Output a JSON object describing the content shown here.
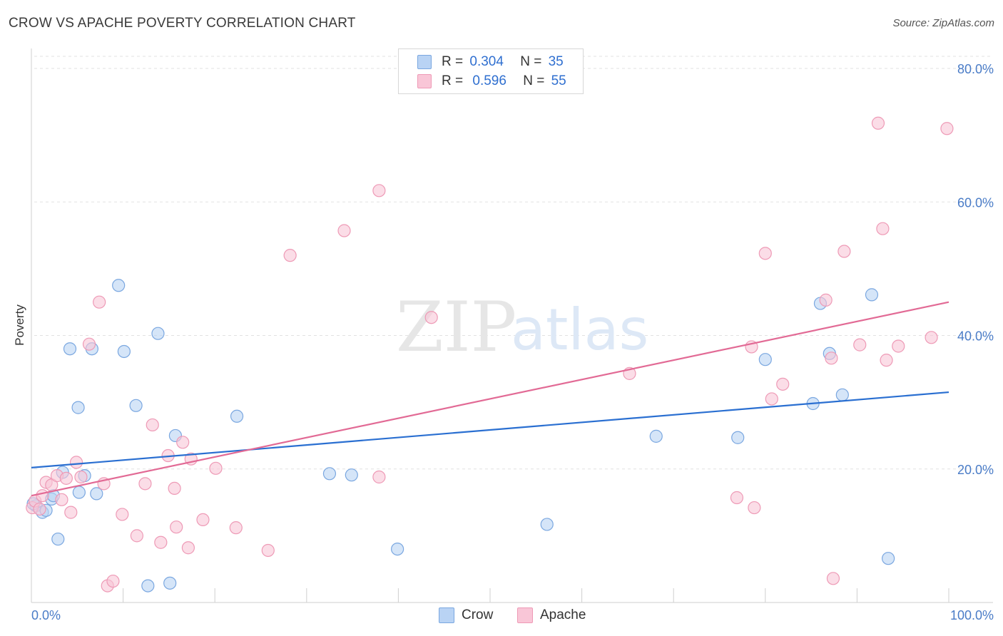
{
  "title": "CROW VS APACHE POVERTY CORRELATION CHART",
  "source": "Source: ZipAtlas.com",
  "watermark": {
    "zip": "ZIP",
    "atlas": "atlas"
  },
  "colors": {
    "crow_fill": "#b9d3f4",
    "crow_stroke": "#7aa7e0",
    "crow_line": "#2a6fd1",
    "apache_fill": "#f9c6d7",
    "apache_stroke": "#ee9ab6",
    "apache_line": "#e26a95",
    "accent_text": "#2f6fd0"
  },
  "legend": {
    "crow": {
      "r_label": "R =",
      "r_value": "0.304",
      "n_label": "N =",
      "n_value": "35"
    },
    "apache": {
      "r_label": "R =",
      "r_value": "0.596",
      "n_label": "N =",
      "n_value": "55"
    }
  },
  "bottom_legend": {
    "crow": "Crow",
    "apache": "Apache"
  },
  "chart_data": {
    "type": "scatter",
    "title": "CROW VS APACHE POVERTY CORRELATION CHART",
    "xlabel": "",
    "ylabel": "Poverty",
    "xlim": [
      0,
      100
    ],
    "ylim": [
      0,
      81
    ],
    "x_tick_labels": [
      "0.0%",
      "100.0%"
    ],
    "y_ticks": [
      20,
      40,
      60,
      80
    ],
    "y_tick_labels": [
      "20.0%",
      "40.0%",
      "60.0%",
      "80.0%"
    ],
    "grid": true,
    "legend_position": "top-center",
    "series": [
      {
        "name": "Crow",
        "r": 0.304,
        "n": 35,
        "trend": {
          "x": [
            0,
            100
          ],
          "y": [
            20.2,
            31.5
          ]
        },
        "points": [
          [
            0.5,
            14.5
          ],
          [
            1.2,
            13.5
          ],
          [
            1.6,
            13.8
          ],
          [
            2.2,
            15.5
          ],
          [
            2.4,
            16.0
          ],
          [
            2.9,
            9.5
          ],
          [
            3.4,
            19.5
          ],
          [
            4.2,
            38.0
          ],
          [
            5.1,
            29.2
          ],
          [
            5.2,
            16.5
          ],
          [
            5.8,
            19.0
          ],
          [
            6.6,
            38.0
          ],
          [
            7.1,
            16.3
          ],
          [
            9.5,
            47.5
          ],
          [
            10.1,
            37.6
          ],
          [
            11.4,
            29.5
          ],
          [
            12.7,
            2.5
          ],
          [
            13.8,
            40.3
          ],
          [
            15.1,
            2.9
          ],
          [
            15.7,
            25.0
          ],
          [
            22.4,
            27.9
          ],
          [
            32.5,
            19.3
          ],
          [
            34.9,
            19.1
          ],
          [
            39.9,
            8.0
          ],
          [
            56.2,
            11.7
          ],
          [
            68.1,
            24.9
          ],
          [
            77.0,
            24.7
          ],
          [
            80.0,
            36.4
          ],
          [
            85.2,
            29.8
          ],
          [
            86.0,
            44.8
          ],
          [
            87.0,
            37.3
          ],
          [
            88.4,
            31.1
          ],
          [
            91.6,
            46.1
          ],
          [
            93.4,
            6.6
          ],
          [
            0.2,
            14.8
          ]
        ]
      },
      {
        "name": "Apache",
        "r": 0.596,
        "n": 55,
        "trend": {
          "x": [
            0,
            100
          ],
          "y": [
            16.0,
            45.0
          ]
        },
        "points": [
          [
            0.1,
            14.2
          ],
          [
            0.4,
            15.2
          ],
          [
            0.9,
            14.0
          ],
          [
            1.2,
            16.0
          ],
          [
            1.6,
            18.0
          ],
          [
            2.2,
            17.6
          ],
          [
            2.8,
            19.0
          ],
          [
            3.3,
            15.4
          ],
          [
            3.8,
            18.6
          ],
          [
            4.3,
            13.5
          ],
          [
            4.9,
            21.0
          ],
          [
            5.4,
            18.8
          ],
          [
            6.3,
            38.7
          ],
          [
            7.4,
            45.0
          ],
          [
            7.9,
            17.8
          ],
          [
            8.3,
            2.5
          ],
          [
            8.9,
            3.2
          ],
          [
            9.9,
            13.2
          ],
          [
            11.5,
            10.0
          ],
          [
            12.4,
            17.8
          ],
          [
            13.2,
            26.6
          ],
          [
            14.1,
            9.0
          ],
          [
            14.9,
            22.0
          ],
          [
            15.6,
            17.1
          ],
          [
            15.8,
            11.3
          ],
          [
            16.5,
            24.0
          ],
          [
            17.1,
            8.2
          ],
          [
            17.4,
            21.5
          ],
          [
            18.7,
            12.4
          ],
          [
            20.1,
            20.1
          ],
          [
            22.3,
            11.2
          ],
          [
            25.8,
            7.8
          ],
          [
            28.2,
            52.0
          ],
          [
            34.1,
            55.7
          ],
          [
            37.9,
            18.8
          ],
          [
            37.9,
            61.7
          ],
          [
            43.6,
            42.7
          ],
          [
            65.2,
            34.3
          ],
          [
            76.9,
            15.7
          ],
          [
            78.5,
            38.3
          ],
          [
            78.8,
            14.2
          ],
          [
            80.0,
            52.3
          ],
          [
            80.7,
            30.5
          ],
          [
            81.9,
            32.7
          ],
          [
            86.6,
            45.3
          ],
          [
            87.2,
            36.6
          ],
          [
            87.4,
            3.6
          ],
          [
            88.6,
            52.6
          ],
          [
            90.3,
            38.6
          ],
          [
            92.3,
            71.8
          ],
          [
            92.8,
            56.0
          ],
          [
            93.2,
            36.3
          ],
          [
            94.5,
            38.4
          ],
          [
            98.1,
            39.7
          ],
          [
            99.8,
            71.0
          ]
        ]
      }
    ]
  }
}
